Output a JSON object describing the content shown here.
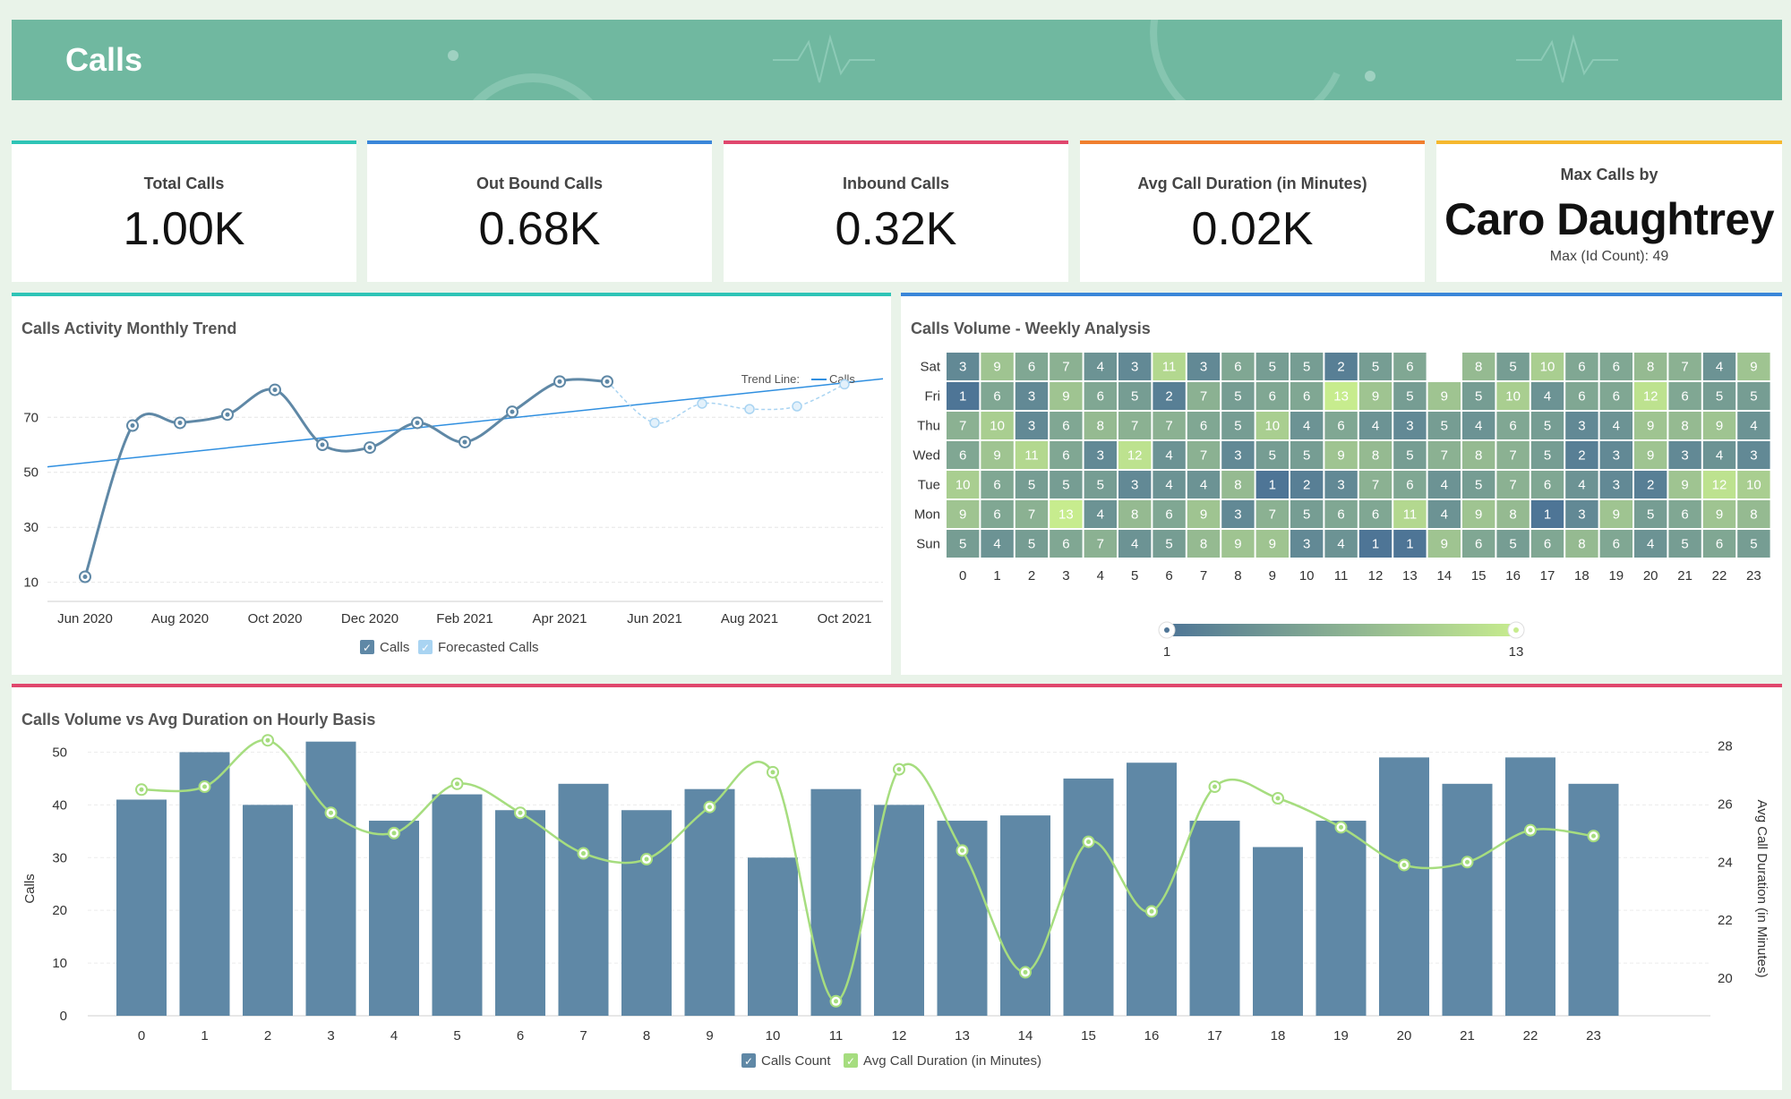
{
  "header": {
    "title": "Calls"
  },
  "kpis": [
    {
      "title": "Total Calls",
      "value": "1.00K",
      "color": "#2ec4b6"
    },
    {
      "title": "Out Bound Calls",
      "value": "0.68K",
      "color": "#3a86d9"
    },
    {
      "title": "Inbound Calls",
      "value": "0.32K",
      "color": "#e0476d"
    },
    {
      "title": "Avg Call Duration (in Minutes)",
      "value": "0.02K",
      "color": "#f07f2e"
    },
    {
      "title": "Max Calls by",
      "value": "Caro Daughtrey",
      "sub": "Max (Id Count): 49",
      "color": "#f5b82e"
    }
  ],
  "colors": {
    "calls": "#5f88a6",
    "forecast": "#a9d4f2",
    "trend": "#2f8fe0",
    "avg": "#a6dd7f",
    "heat_low": "#4e7596",
    "heat_high": "#c7ec8e"
  },
  "chart_data": [
    {
      "type": "line",
      "title": "Calls Activity Monthly Trend",
      "x_ticks": [
        "Jun 2020",
        "Aug 2020",
        "Oct 2020",
        "Dec 2020",
        "Feb 2021",
        "Apr 2021",
        "Jun 2021",
        "Aug 2021",
        "Oct 2021"
      ],
      "y_ticks": [
        10,
        30,
        50,
        70
      ],
      "ylim": [
        5,
        88
      ],
      "trend_label": "Trend Line:",
      "trend_series": "Calls",
      "legend": [
        "Calls",
        "Forecasted Calls"
      ],
      "grid": true,
      "series": [
        {
          "name": "Calls",
          "x": [
            "Jun 2020",
            "Jul 2020",
            "Aug 2020",
            "Sep 2020",
            "Oct 2020",
            "Nov 2020",
            "Dec 2020",
            "Jan 2021",
            "Feb 2021",
            "Mar 2021",
            "Apr 2021",
            "May 2021"
          ],
          "values": [
            12,
            67,
            68,
            71,
            80,
            60,
            59,
            68,
            61,
            72,
            83,
            83
          ]
        },
        {
          "name": "Forecasted Calls",
          "x": [
            "May 2021",
            "Jun 2021",
            "Jul 2021",
            "Aug 2021",
            "Sep 2021",
            "Oct 2021"
          ],
          "values": [
            83,
            68,
            75,
            73,
            74,
            82
          ]
        }
      ],
      "trend": {
        "start": 52,
        "end": 84
      }
    },
    {
      "type": "heatmap",
      "title": "Calls Volume - Weekly Analysis",
      "rows": [
        "Sat",
        "Fri",
        "Thu",
        "Wed",
        "Tue",
        "Mon",
        "Sun"
      ],
      "columns": [
        0,
        1,
        2,
        3,
        4,
        5,
        6,
        7,
        8,
        9,
        10,
        11,
        12,
        13,
        14,
        15,
        16,
        17,
        18,
        19,
        20,
        21,
        22,
        23
      ],
      "values": [
        [
          3,
          9,
          6,
          7,
          4,
          3,
          11,
          3,
          6,
          5,
          5,
          2,
          5,
          6,
          null,
          8,
          5,
          10,
          6,
          6,
          8,
          7,
          4,
          9
        ],
        [
          1,
          6,
          3,
          9,
          6,
          5,
          2,
          7,
          5,
          6,
          6,
          13,
          9,
          5,
          9,
          5,
          10,
          4,
          6,
          6,
          12,
          6,
          5,
          5
        ],
        [
          7,
          10,
          3,
          6,
          8,
          7,
          7,
          6,
          5,
          10,
          4,
          6,
          4,
          3,
          5,
          4,
          6,
          5,
          3,
          4,
          9,
          8,
          9,
          4
        ],
        [
          6,
          9,
          11,
          6,
          3,
          12,
          4,
          7,
          3,
          5,
          5,
          9,
          8,
          5,
          7,
          8,
          7,
          5,
          2,
          3,
          9,
          3,
          4,
          3
        ],
        [
          10,
          6,
          5,
          5,
          5,
          3,
          4,
          4,
          8,
          1,
          2,
          3,
          7,
          6,
          4,
          5,
          7,
          6,
          4,
          3,
          2,
          9,
          12,
          10
        ],
        [
          9,
          6,
          7,
          13,
          4,
          8,
          6,
          9,
          3,
          7,
          5,
          6,
          6,
          11,
          4,
          9,
          8,
          1,
          3,
          9,
          5,
          6,
          9,
          8
        ],
        [
          5,
          4,
          5,
          6,
          7,
          4,
          5,
          8,
          9,
          9,
          3,
          4,
          1,
          1,
          9,
          6,
          5,
          6,
          8,
          6,
          4,
          5,
          6,
          5
        ]
      ],
      "scale_min": 1,
      "scale_max": 13
    },
    {
      "type": "bar",
      "title": "Calls Volume vs Avg Duration on Hourly Basis",
      "categories": [
        "0",
        "1",
        "2",
        "3",
        "4",
        "5",
        "6",
        "7",
        "8",
        "9",
        "10",
        "11",
        "12",
        "13",
        "14",
        "15",
        "16",
        "17",
        "18",
        "19",
        "20",
        "21",
        "22",
        "23"
      ],
      "ylabel": "Calls",
      "y2label": "Avg Call Duration (in Minutes)",
      "ylim": [
        0,
        55
      ],
      "y_ticks": [
        0,
        10,
        20,
        30,
        40,
        50
      ],
      "y2lim": [
        18.7,
        28.7
      ],
      "y2_ticks": [
        20,
        22,
        24,
        26,
        28
      ],
      "legend": [
        "Calls Count",
        "Avg Call Duration (in Minutes)"
      ],
      "grid": true,
      "series": [
        {
          "name": "Calls Count",
          "type": "bar",
          "values": [
            41,
            50,
            40,
            52,
            37,
            42,
            39,
            44,
            39,
            43,
            30,
            43,
            40,
            37,
            38,
            45,
            48,
            37,
            32,
            37,
            49,
            44,
            49,
            44
          ]
        },
        {
          "name": "Avg Call Duration (in Minutes)",
          "type": "line",
          "axis": "y2",
          "values": [
            26.5,
            26.6,
            28.2,
            25.7,
            25.0,
            26.7,
            25.7,
            24.3,
            24.1,
            25.9,
            27.1,
            19.2,
            27.2,
            24.4,
            20.2,
            24.7,
            22.3,
            26.6,
            26.2,
            25.2,
            23.9,
            24.0,
            25.1,
            24.9
          ]
        }
      ]
    }
  ]
}
